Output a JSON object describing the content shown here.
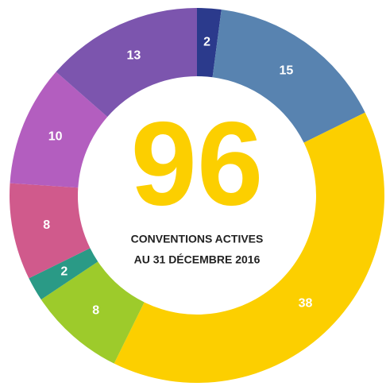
{
  "chart_data": {
    "type": "donut",
    "values": [
      2,
      15,
      38,
      8,
      2,
      8,
      10,
      13
    ],
    "colors": [
      "#2b3a8c",
      "#5883b0",
      "#fccf00",
      "#9dcb2b",
      "#2a9a86",
      "#d05a8c",
      "#b35ebf",
      "#7c55ae"
    ],
    "center_value": 96,
    "center_text": [
      "CONVENTIONS ACTIVES",
      "AU 31 DÉCEMBRE 2016"
    ]
  }
}
